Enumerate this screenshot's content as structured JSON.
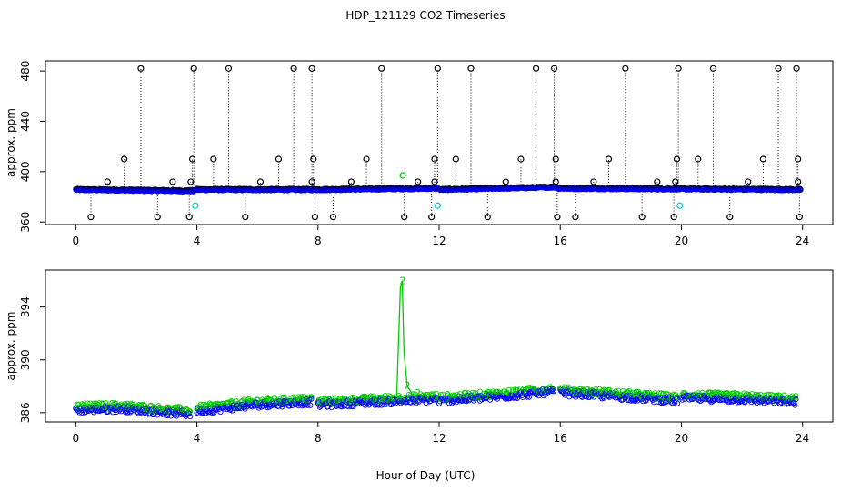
{
  "title": "HDP_121129  CO2 Timeseries",
  "xlabel": "Hour of Day (UTC)",
  "chart_data": [
    {
      "type": "scatter",
      "panel": "top",
      "ylabel": "approx. ppm",
      "xlim": [
        -1,
        25
      ],
      "ylim": [
        358,
        488
      ],
      "xticks": [
        0,
        4,
        8,
        12,
        16,
        20,
        24
      ],
      "yticks": [
        360,
        400,
        440,
        480
      ],
      "baseline": {
        "hours": [
          0,
          3.9,
          4.0,
          8.0,
          11.95,
          12.05,
          15.85,
          15.95,
          24
        ],
        "ppm": [
          386,
          385,
          386,
          386,
          387,
          386,
          388,
          387,
          386
        ]
      },
      "spikes_high": [
        2.15,
        3.9,
        5.05,
        7.2,
        7.8,
        10.1,
        11.95,
        13.05,
        15.2,
        15.8,
        18.15,
        19.9,
        21.05,
        23.2,
        23.8
      ],
      "spikes_high_value": 482,
      "spikes_low": [
        0.5,
        2.7,
        3.75,
        5.6,
        7.9,
        8.5,
        10.85,
        11.75,
        13.6,
        15.9,
        16.5,
        18.7,
        19.75,
        21.6,
        23.9
      ],
      "spikes_low_value": 364,
      "spikes_mid": [
        1.6,
        3.85,
        4.55,
        6.7,
        7.85,
        9.6,
        11.85,
        12.55,
        14.7,
        15.85,
        17.6,
        19.85,
        20.55,
        22.7,
        23.85
      ],
      "spikes_mid_value": 410,
      "spikes_small": [
        1.05,
        3.2,
        3.8,
        6.1,
        7.8,
        9.1,
        11.3,
        11.85,
        14.2,
        15.85,
        17.1,
        19.2,
        19.8,
        22.2,
        23.85
      ],
      "spikes_small_value": 392,
      "cyan_points": [
        {
          "x": 3.95,
          "y": 373
        },
        {
          "x": 11.95,
          "y": 373
        },
        {
          "x": 19.95,
          "y": 373
        }
      ],
      "green_points": [
        {
          "x": 10.8,
          "y": 397
        }
      ]
    },
    {
      "type": "scatter",
      "panel": "bottom",
      "ylabel": "approx. ppm",
      "xlim": [
        -1,
        25
      ],
      "ylim": [
        385.3,
        396.8
      ],
      "xticks": [
        0,
        4,
        8,
        12,
        16,
        20,
        24
      ],
      "yticks": [
        386,
        390,
        394
      ],
      "segments": [
        {
          "hours": [
            0,
            1.5,
            3.0,
            3.8
          ],
          "ppm": [
            386.2,
            386.3,
            386.0,
            385.9
          ]
        },
        {
          "hours": [
            4.0,
            6.0,
            7.8
          ],
          "ppm": [
            386.1,
            386.6,
            386.8
          ]
        },
        {
          "hours": [
            8.0,
            10.0,
            11.9
          ],
          "ppm": [
            386.6,
            386.8,
            387.0
          ]
        },
        {
          "hours": [
            12.0,
            14.0,
            15.8
          ],
          "ppm": [
            386.9,
            387.2,
            387.6
          ]
        },
        {
          "hours": [
            16.0,
            18.0,
            19.9
          ],
          "ppm": [
            387.5,
            387.2,
            386.9
          ]
        },
        {
          "hours": [
            20.0,
            22.0,
            23.8
          ],
          "ppm": [
            387.1,
            387.0,
            386.8
          ]
        }
      ],
      "green_trace": {
        "hours": [
          10.6,
          10.72,
          10.78,
          10.84,
          10.95,
          11.1
        ],
        "ppm": [
          387.3,
          395.5,
          396.0,
          390.5,
          388.0,
          387.5
        ]
      },
      "green_labels": [
        {
          "text": "2",
          "x": 10.8,
          "y": 396.0
        },
        {
          "text": "2",
          "x": 10.95,
          "y": 388.1
        },
        {
          "text": "2",
          "x": 10.1,
          "y": 387.1
        },
        {
          "text": "2",
          "x": 11.3,
          "y": 387.5
        }
      ]
    }
  ]
}
